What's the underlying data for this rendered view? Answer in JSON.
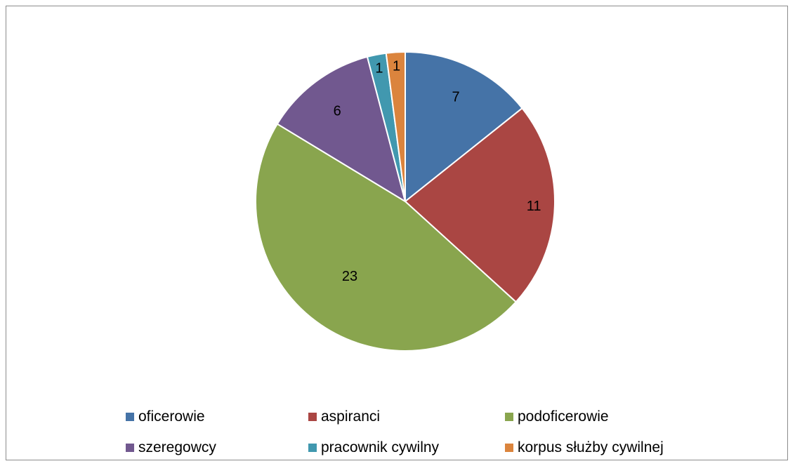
{
  "chart_data": {
    "type": "pie",
    "title": "",
    "categories": [
      "oficerowie",
      "aspiranci",
      "podoficerowie",
      "szeregowcy",
      "pracownik cywilny",
      "korpus służby cywilnej"
    ],
    "values": [
      7,
      11,
      23,
      6,
      1,
      1
    ],
    "colors": [
      "#4573A7",
      "#AA4643",
      "#89A54E",
      "#71588F",
      "#4198AF",
      "#DB843D"
    ],
    "start_angle": "top (12 o'clock), clockwise",
    "legend_position": "bottom",
    "data_labels": [
      "7",
      "11",
      "23",
      "6",
      "1",
      "1"
    ]
  }
}
